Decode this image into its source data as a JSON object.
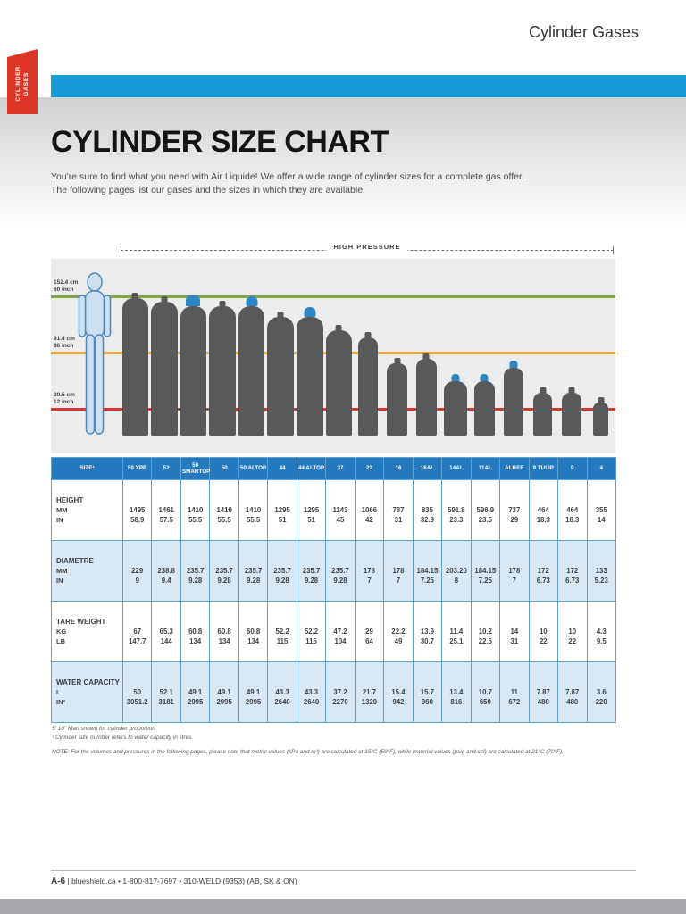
{
  "page": {
    "header_title": "Cylinder Gases",
    "ribbon_line1": "CYLINDER",
    "ribbon_line2": "GASES",
    "title": "CYLINDER SIZE CHART",
    "intro_line1": "You're sure to find what you need with Air Liquide! We offer a wide range of cylinder sizes for a complete gas offer.",
    "intro_line2": "The following pages list our gases and the sizes in which they are available.",
    "footnote_man": "5' 10\" Man shown for cylinder proportion",
    "footnote_size": "¹ Cylinder size number refers to water capacity in litres.",
    "note": "NOTE: For the volumes and pressures in the following pages, please note that metric values (kPa and m³) are calculated at 15°C (59°F), while imperial values (psig and scf) are calculated at 21°C (70°F).",
    "footer_page": "A-6",
    "footer_contact": "| blueshield.ca • 1-800-817-7697 • 310-WELD (9353) (AB, SK & ON)"
  },
  "diagram": {
    "bracket_label": "HIGH PRESSURE",
    "colors": {
      "line_60": "#7fa845",
      "line_36": "#eca63e",
      "line_12": "#d63831",
      "cylinder": "#58595b",
      "cap_blue": "#2e86c4"
    },
    "height_markers": [
      {
        "cm": "152.4 cm",
        "inch": "60 inch",
        "inches": 60,
        "color": "#7fa845"
      },
      {
        "cm": "91.4 cm",
        "inch": "36 inch",
        "inches": 36,
        "color": "#eca63e"
      },
      {
        "cm": "30.5 cm",
        "inch": "12 inch",
        "inches": 12,
        "color": "#d63831"
      }
    ],
    "person": {
      "label": "5' 10\" man",
      "height_in": 70
    },
    "cylinders": [
      {
        "name": "50 XPR",
        "h_in": 58.9,
        "dia_in": 9.0,
        "cap": "none"
      },
      {
        "name": "52",
        "h_in": 57.5,
        "dia_in": 9.4,
        "cap": "none"
      },
      {
        "name": "50 SMARTOP",
        "h_in": 55.5,
        "dia_in": 9.28,
        "cap": "smartop"
      },
      {
        "name": "50",
        "h_in": 55.5,
        "dia_in": 9.28,
        "cap": "none"
      },
      {
        "name": "50 ALTOP",
        "h_in": 55.5,
        "dia_in": 9.28,
        "cap": "altop"
      },
      {
        "name": "44",
        "h_in": 51,
        "dia_in": 9.28,
        "cap": "none"
      },
      {
        "name": "44 ALTOP",
        "h_in": 51,
        "dia_in": 9.28,
        "cap": "altop"
      },
      {
        "name": "37",
        "h_in": 45,
        "dia_in": 9.28,
        "cap": "none"
      },
      {
        "name": "22",
        "h_in": 42,
        "dia_in": 7.0,
        "cap": "none"
      },
      {
        "name": "16",
        "h_in": 31,
        "dia_in": 7.0,
        "cap": "none"
      },
      {
        "name": "16AL",
        "h_in": 32.9,
        "dia_in": 7.25,
        "cap": "none"
      },
      {
        "name": "14AL",
        "h_in": 23.3,
        "dia_in": 8.0,
        "cap": "small"
      },
      {
        "name": "11AL",
        "h_in": 23.5,
        "dia_in": 7.25,
        "cap": "small"
      },
      {
        "name": "ALBEE",
        "h_in": 29,
        "dia_in": 7.0,
        "cap": "small"
      },
      {
        "name": "9 TULIP",
        "h_in": 18.3,
        "dia_in": 6.73,
        "cap": "none"
      },
      {
        "name": "9",
        "h_in": 18.3,
        "dia_in": 6.73,
        "cap": "none"
      },
      {
        "name": "4",
        "h_in": 14,
        "dia_in": 5.23,
        "cap": "none"
      }
    ]
  },
  "table": {
    "size_header": "SIZE¹",
    "columns": [
      "50 XPR",
      "52",
      "50 SMARTOP",
      "50",
      "50 ALTOP",
      "44",
      "44 ALTOP",
      "37",
      "22",
      "16",
      "16AL",
      "14AL",
      "11AL",
      "ALBEE",
      "9 TULIP",
      "9",
      "4"
    ],
    "groups": [
      {
        "label": "HEIGHT",
        "subs": [
          "MM",
          "IN"
        ],
        "values": [
          [
            "1495",
            "1461",
            "1410",
            "1410",
            "1410",
            "1295",
            "1295",
            "1143",
            "1066",
            "787",
            "835",
            "591.8",
            "596.9",
            "737",
            "464",
            "464",
            "355"
          ],
          [
            "58.9",
            "57.5",
            "55.5",
            "55.5",
            "55.5",
            "51",
            "51",
            "45",
            "42",
            "31",
            "32.9",
            "23.3",
            "23.5",
            "29",
            "18.3",
            "18.3",
            "14"
          ]
        ]
      },
      {
        "label": "DIAMETRE",
        "subs": [
          "MM",
          "IN"
        ],
        "values": [
          [
            "229",
            "238.8",
            "235.7",
            "235.7",
            "235.7",
            "235.7",
            "235.7",
            "235.7",
            "178",
            "178",
            "184.15",
            "203.20",
            "184.15",
            "178",
            "172",
            "172",
            "133"
          ],
          [
            "9",
            "9.4",
            "9.28",
            "9.28",
            "9.28",
            "9.28",
            "9.28",
            "9.28",
            "7",
            "7",
            "7.25",
            "8",
            "7.25",
            "7",
            "6.73",
            "6.73",
            "5.23"
          ]
        ]
      },
      {
        "label": "TARE WEIGHT",
        "subs": [
          "KG",
          "LB"
        ],
        "values": [
          [
            "67",
            "65.3",
            "60.8",
            "60.8",
            "60.8",
            "52.2",
            "52.2",
            "47.2",
            "29",
            "22.2",
            "13.9",
            "11.4",
            "10.2",
            "14",
            "10",
            "10",
            "4.3"
          ],
          [
            "147.7",
            "144",
            "134",
            "134",
            "134",
            "115",
            "115",
            "104",
            "64",
            "49",
            "30.7",
            "25.1",
            "22.6",
            "31",
            "22",
            "22",
            "9.5"
          ]
        ]
      },
      {
        "label": "WATER CAPACITY",
        "subs": [
          "L",
          "IN³"
        ],
        "values": [
          [
            "50",
            "52.1",
            "49.1",
            "49.1",
            "49.1",
            "43.3",
            "43.3",
            "37.2",
            "21.7",
            "15.4",
            "15.7",
            "13.4",
            "10.7",
            "11",
            "7.87",
            "7.87",
            "3.6"
          ],
          [
            "3051.2",
            "3181",
            "2995",
            "2995",
            "2995",
            "2640",
            "2640",
            "2270",
            "1320",
            "942",
            "960",
            "816",
            "650",
            "672",
            "480",
            "480",
            "220"
          ]
        ]
      }
    ]
  }
}
